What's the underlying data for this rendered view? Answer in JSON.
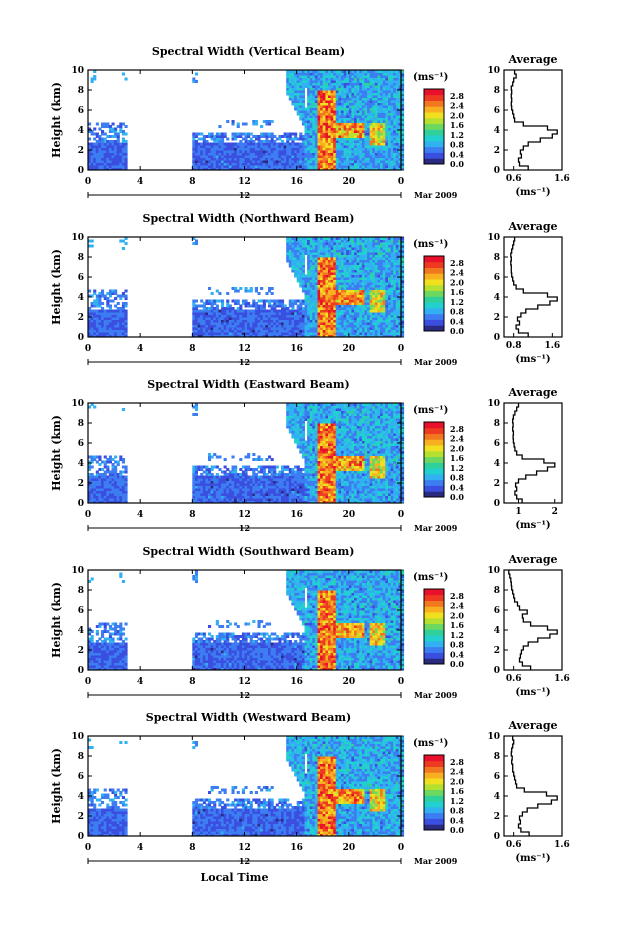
{
  "colors": {
    "colorbar": [
      "#2a2a80",
      "#3a4fe0",
      "#3d7df2",
      "#31b0f2",
      "#22d0d0",
      "#30d09a",
      "#6cd860",
      "#b6e030",
      "#f0e020",
      "#f8b020",
      "#f27820",
      "#ee3a20",
      "#e8102a"
    ],
    "white": "#ffffff",
    "axis": "#000000"
  },
  "chart_data": [
    {
      "type": "heatmap",
      "title": "Spectral Width (Vertical Beam)",
      "ylabel": "Height (km)",
      "xlim": [
        0,
        24
      ],
      "ylim": [
        0,
        10
      ],
      "xticks": [
        "0",
        "4",
        "8",
        "12",
        "16",
        "20",
        "0"
      ],
      "yticks": [
        "0",
        "2",
        "4",
        "6",
        "8",
        "10"
      ],
      "date_label": "12",
      "month_label": "Mar 2009",
      "colorbar": {
        "unit": "(ms⁻¹)",
        "range": [
          0,
          2.8
        ],
        "labels": [
          "2.8",
          "2.4",
          "2.0",
          "1.6",
          "1.2",
          "0.8",
          "0.4",
          "0.0"
        ]
      },
      "average": {
        "title": "Average",
        "xlabel": "(ms⁻¹)",
        "xticks": [
          "0.6",
          "1.6"
        ],
        "xlim": [
          0.4,
          1.6
        ],
        "ylim": [
          0,
          10
        ],
        "yticks": [
          "0",
          "2",
          "4",
          "6",
          "8",
          "10"
        ],
        "heights": [
          0.2,
          0.6,
          1.0,
          1.4,
          1.8,
          2.2,
          2.6,
          3.0,
          3.4,
          3.8,
          4.2,
          4.6,
          5.0,
          5.4,
          5.8,
          6.2,
          6.6,
          7.0,
          7.4,
          7.8,
          8.2,
          8.6,
          9.0,
          9.4,
          9.8
        ],
        "values": [
          0.9,
          0.72,
          0.7,
          0.76,
          0.74,
          0.8,
          0.9,
          1.15,
          1.4,
          1.5,
          1.3,
          0.8,
          0.62,
          0.6,
          0.58,
          0.56,
          0.55,
          0.56,
          0.55,
          0.56,
          0.55,
          0.58,
          0.6,
          0.65,
          0.62
        ]
      }
    },
    {
      "type": "heatmap",
      "title": "Spectral Width (Northward Beam)",
      "ylabel": "Height (km)",
      "xlim": [
        0,
        24
      ],
      "ylim": [
        0,
        10
      ],
      "xticks": [
        "0",
        "4",
        "8",
        "12",
        "16",
        "20",
        "0"
      ],
      "yticks": [
        "0",
        "2",
        "4",
        "6",
        "8",
        "10"
      ],
      "date_label": "12",
      "month_label": "Mar 2009",
      "colorbar": {
        "unit": "(ms⁻¹)",
        "range": [
          0,
          2.8
        ],
        "labels": [
          "2.8",
          "2.4",
          "2.0",
          "1.6",
          "1.2",
          "0.8",
          "0.4",
          "0.0"
        ]
      },
      "average": {
        "title": "Average",
        "xlabel": "(ms⁻¹)",
        "xticks": [
          "0.8",
          "1.6"
        ],
        "xlim": [
          0.6,
          1.8
        ],
        "ylim": [
          0,
          10
        ],
        "yticks": [
          "0",
          "2",
          "4",
          "6",
          "8",
          "10"
        ],
        "heights": [
          0.2,
          0.6,
          1.0,
          1.4,
          1.8,
          2.2,
          2.6,
          3.0,
          3.4,
          3.8,
          4.2,
          4.6,
          5.0,
          5.4,
          5.8,
          6.2,
          6.6,
          7.0,
          7.4,
          7.8,
          8.2,
          8.6,
          9.0,
          9.4,
          9.8
        ],
        "values": [
          1.1,
          0.9,
          0.85,
          0.92,
          0.88,
          0.95,
          1.05,
          1.3,
          1.55,
          1.7,
          1.5,
          1.0,
          0.85,
          0.8,
          0.78,
          0.76,
          0.75,
          0.75,
          0.74,
          0.75,
          0.74,
          0.76,
          0.78,
          0.8,
          0.82
        ]
      }
    },
    {
      "type": "heatmap",
      "title": "Spectral Width (Eastward Beam)",
      "ylabel": "Height (km)",
      "xlim": [
        0,
        24
      ],
      "ylim": [
        0,
        10
      ],
      "xticks": [
        "0",
        "4",
        "8",
        "12",
        "16",
        "20",
        "0"
      ],
      "yticks": [
        "0",
        "2",
        "4",
        "6",
        "8",
        "10"
      ],
      "date_label": "12",
      "month_label": "Mar 2009",
      "colorbar": {
        "unit": "(ms⁻¹)",
        "range": [
          0,
          2.8
        ],
        "labels": [
          "2.8",
          "2.4",
          "2.0",
          "1.6",
          "1.2",
          "0.8",
          "0.4",
          "0.0"
        ]
      },
      "average": {
        "title": "Average",
        "xlabel": "(ms⁻¹)",
        "xticks": [
          "1",
          "2"
        ],
        "xlim": [
          0.6,
          2.2
        ],
        "ylim": [
          0,
          10
        ],
        "yticks": [
          "0",
          "2",
          "4",
          "6",
          "8",
          "10"
        ],
        "heights": [
          0.2,
          0.6,
          1.0,
          1.4,
          1.8,
          2.2,
          2.6,
          3.0,
          3.4,
          3.8,
          4.2,
          4.6,
          5.0,
          5.4,
          5.8,
          6.2,
          6.6,
          7.0,
          7.4,
          7.8,
          8.2,
          8.6,
          9.0,
          9.4,
          9.8
        ],
        "values": [
          1.1,
          0.95,
          0.9,
          0.95,
          0.92,
          1.0,
          1.2,
          1.5,
          1.8,
          2.0,
          1.7,
          1.1,
          0.95,
          0.9,
          0.88,
          0.86,
          0.85,
          0.86,
          0.84,
          0.85,
          0.84,
          0.86,
          0.9,
          0.95,
          1.0
        ]
      }
    },
    {
      "type": "heatmap",
      "title": "Spectral Width (Southward Beam)",
      "ylabel": "Height (km)",
      "xlim": [
        0,
        24
      ],
      "ylim": [
        0,
        10
      ],
      "xticks": [
        "0",
        "4",
        "8",
        "12",
        "16",
        "20",
        "0"
      ],
      "yticks": [
        "0",
        "2",
        "4",
        "6",
        "8",
        "10"
      ],
      "date_label": "12",
      "month_label": "Mar 2009",
      "colorbar": {
        "unit": "(ms⁻¹)",
        "range": [
          0,
          2.8
        ],
        "labels": [
          "2.8",
          "2.4",
          "2.0",
          "1.6",
          "1.2",
          "0.8",
          "0.4",
          "0.0"
        ]
      },
      "average": {
        "title": "Average",
        "xlabel": "(ms⁻¹)",
        "xticks": [
          "0.6",
          "1.6"
        ],
        "xlim": [
          0.4,
          1.6
        ],
        "ylim": [
          0,
          10
        ],
        "yticks": [
          "0",
          "2",
          "4",
          "6",
          "8",
          "10"
        ],
        "heights": [
          0.2,
          0.6,
          1.0,
          1.4,
          1.8,
          2.2,
          2.6,
          3.0,
          3.4,
          3.8,
          4.2,
          4.6,
          5.0,
          5.4,
          5.8,
          6.2,
          6.6,
          7.0,
          7.4,
          7.8,
          8.2,
          8.6,
          9.0,
          9.4,
          9.8
        ],
        "values": [
          0.95,
          0.78,
          0.72,
          0.74,
          0.76,
          0.8,
          0.9,
          1.1,
          1.35,
          1.5,
          1.3,
          0.95,
          0.8,
          0.78,
          0.88,
          0.72,
          0.68,
          0.62,
          0.6,
          0.58,
          0.56,
          0.55,
          0.54,
          0.52,
          0.5
        ]
      }
    },
    {
      "type": "heatmap",
      "title": "Spectral Width (Westward Beam)",
      "ylabel": "Height (km)",
      "xlabel": "Local Time",
      "xlim": [
        0,
        24
      ],
      "ylim": [
        0,
        10
      ],
      "xticks": [
        "0",
        "4",
        "8",
        "12",
        "16",
        "20",
        "0"
      ],
      "yticks": [
        "0",
        "2",
        "4",
        "6",
        "8",
        "10"
      ],
      "date_label": "12",
      "month_label": "Mar 2009",
      "colorbar": {
        "unit": "(ms⁻¹)",
        "range": [
          0,
          2.8
        ],
        "labels": [
          "2.8",
          "2.4",
          "2.0",
          "1.6",
          "1.2",
          "0.8",
          "0.4",
          "0.0"
        ]
      },
      "average": {
        "title": "Average",
        "xlabel": "(ms⁻¹)",
        "xticks": [
          "0.6",
          "1.6"
        ],
        "xlim": [
          0.4,
          1.6
        ],
        "ylim": [
          0,
          10
        ],
        "yticks": [
          "0",
          "2",
          "4",
          "6",
          "8",
          "10"
        ],
        "heights": [
          0.2,
          0.6,
          1.0,
          1.4,
          1.8,
          2.2,
          2.6,
          3.0,
          3.4,
          3.8,
          4.2,
          4.6,
          5.0,
          5.4,
          5.8,
          6.2,
          6.6,
          7.0,
          7.4,
          7.8,
          8.2,
          8.6,
          9.0,
          9.4,
          9.8
        ],
        "values": [
          0.92,
          0.75,
          0.7,
          0.74,
          0.72,
          0.78,
          0.88,
          1.1,
          1.38,
          1.5,
          1.28,
          0.82,
          0.66,
          0.64,
          0.62,
          0.6,
          0.58,
          0.58,
          0.56,
          0.57,
          0.55,
          0.56,
          0.58,
          0.6,
          0.58
        ]
      }
    }
  ]
}
